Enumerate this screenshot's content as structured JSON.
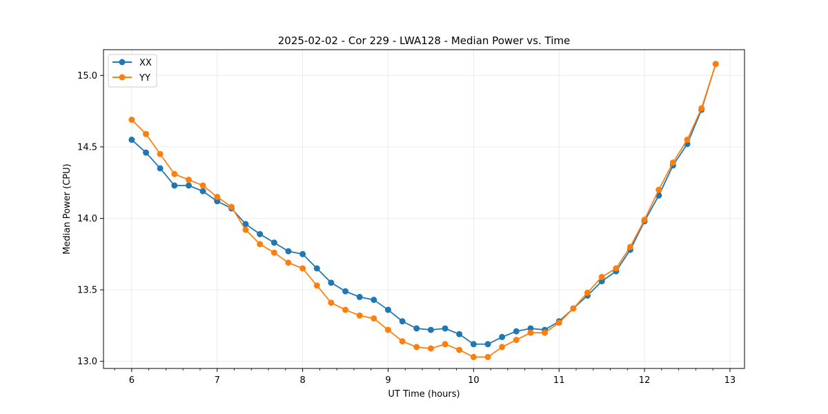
{
  "chart_data": {
    "type": "line",
    "title": "2025-02-02 - Cor 229 - LWA128 - Median Power vs. Time",
    "xlabel": "UT Time (hours)",
    "ylabel": "Median Power (CPU)",
    "xlim": [
      5.67,
      13.17
    ],
    "ylim": [
      12.95,
      15.18
    ],
    "xticks": [
      6,
      7,
      8,
      9,
      10,
      11,
      12,
      13
    ],
    "xtick_labels": [
      "6",
      "7",
      "8",
      "9",
      "10",
      "11",
      "12",
      "13"
    ],
    "xminor_step": 0.2,
    "yticks": [
      13.0,
      13.5,
      14.0,
      14.5,
      15.0
    ],
    "ytick_labels": [
      "13.0",
      "13.5",
      "14.0",
      "14.5",
      "15.0"
    ],
    "grid": true,
    "legend_position": "upper-left",
    "x": [
      6.0,
      6.167,
      6.333,
      6.5,
      6.667,
      6.833,
      7.0,
      7.167,
      7.333,
      7.5,
      7.667,
      7.833,
      8.0,
      8.167,
      8.333,
      8.5,
      8.667,
      8.833,
      9.0,
      9.167,
      9.333,
      9.5,
      9.667,
      9.833,
      10.0,
      10.167,
      10.333,
      10.5,
      10.667,
      10.833,
      11.0,
      11.167,
      11.333,
      11.5,
      11.667,
      11.833,
      12.0,
      12.167,
      12.333,
      12.5,
      12.667,
      12.833
    ],
    "series": [
      {
        "name": "XX",
        "color": "#1f77b4",
        "values": [
          14.55,
          14.46,
          14.35,
          14.23,
          14.23,
          14.19,
          14.12,
          14.07,
          13.96,
          13.89,
          13.83,
          13.77,
          13.75,
          13.65,
          13.55,
          13.49,
          13.45,
          13.43,
          13.36,
          13.28,
          13.23,
          13.22,
          13.23,
          13.19,
          13.12,
          13.12,
          13.17,
          13.21,
          13.23,
          13.22,
          13.28,
          13.37,
          13.46,
          13.56,
          13.63,
          13.78,
          13.98,
          14.16,
          14.37,
          14.52,
          14.76,
          15.08
        ]
      },
      {
        "name": "YY",
        "color": "#ff7f0e",
        "values": [
          14.69,
          14.59,
          14.45,
          14.31,
          14.27,
          14.23,
          14.15,
          14.08,
          13.92,
          13.82,
          13.76,
          13.69,
          13.65,
          13.53,
          13.41,
          13.36,
          13.32,
          13.3,
          13.22,
          13.14,
          13.1,
          13.09,
          13.12,
          13.08,
          13.03,
          13.03,
          13.1,
          13.15,
          13.2,
          13.2,
          13.27,
          13.37,
          13.48,
          13.59,
          13.65,
          13.8,
          13.99,
          14.2,
          14.39,
          14.55,
          14.77,
          15.08
        ]
      }
    ]
  }
}
